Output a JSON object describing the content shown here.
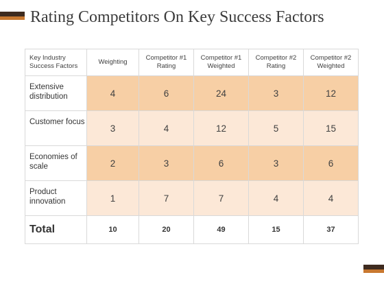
{
  "slide": {
    "title": "Rating Competitors On Key Success Factors"
  },
  "table": {
    "headers": [
      "Key Industry Success Factors",
      "Weighting",
      "Competitor #1 Rating",
      "Competitor #1 Weighted",
      "Competitor #2 Rating",
      "Competitor #2 Weighted"
    ],
    "rows": [
      {
        "factor": "Extensive distribution",
        "values": [
          "4",
          "6",
          "24",
          "3",
          "12"
        ]
      },
      {
        "factor": "Customer focus",
        "values": [
          "3",
          "4",
          "12",
          "5",
          "15"
        ]
      },
      {
        "factor": "Economies of scale",
        "values": [
          "2",
          "3",
          "6",
          "3",
          "6"
        ]
      },
      {
        "factor": "Product innovation",
        "values": [
          "1",
          "7",
          "7",
          "4",
          "4"
        ]
      }
    ],
    "total": {
      "label": "Total",
      "values": [
        "10",
        "20",
        "49",
        "15",
        "37"
      ]
    }
  },
  "colors": {
    "accent_dark": "#3e2b1f",
    "accent_orange": "#c87830",
    "row_dark": "#f7cfa5",
    "row_light": "#fce8d7"
  }
}
